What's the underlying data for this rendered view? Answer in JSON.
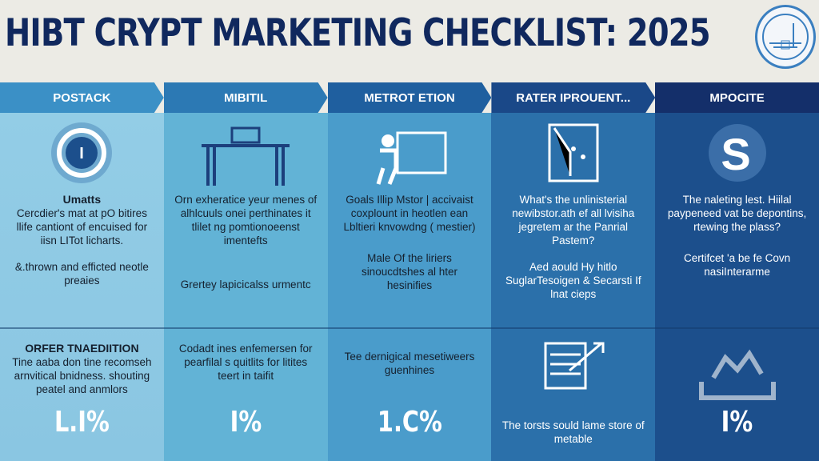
{
  "title": "HIBT CRYPT MARKETING CHECKLIST: 2025",
  "columns": [
    {
      "header": "POSTACK",
      "icon": "gear-shield-icon",
      "subtitle": "Umatts",
      "text": "Cercdier's mat at pO bitires llife cantiont of encuised for iisn LITot licharts.",
      "text2": "&.thrown and efficted neotle preaies",
      "lower_title": "ORFER TNAEDIITION",
      "lower_text": "Tine aaba don tine recomseh arnvitical bnidness. shouting peatel and anmlors",
      "percent": "L.I%"
    },
    {
      "header": "MIBITIL",
      "icon": "desk-icon",
      "text": "Orn exheratice yeur menes of alhlcuuls onei perthinates it tlilet ng pomtionoeenst imentefts",
      "text2": "Grertey lapicicalss urmentc",
      "lower_text": "Codadt ines enfemersen for pearfilal s quitlits for litites teert in taifit",
      "percent": "I%"
    },
    {
      "header": "METROT ETION",
      "icon": "worker-screen-icon",
      "text": "Goals Illip Mstor | accivaist coxplount in heotlen ean Lbltieri knvowdng ( mestier)",
      "text2": "Male Of the liriers sinoucdtshes al hter hesinifies",
      "lower_text": "Tee dernigical mesetiweers guenhines",
      "percent": "1.C%"
    },
    {
      "header": "RATER IPROUENT...",
      "icon": "chart-board-icon",
      "text": "What's the unlinisterial newibstor.ath ef all lvisiha jegretem ar the Panrial Pastem?",
      "text2": "Aed aould Hy hitlo SuglarTesoigen & Secarsti If lnat cieps",
      "lower_icon": "chart-arrow-icon",
      "lower_text": "The torsts sould lame store of metable",
      "percent": ""
    },
    {
      "header": "MPOCITE",
      "icon": "dollar-arrows-icon",
      "text": "The naleting lest. Hiilal paypeneed vat be depontins, rtewing the plass?",
      "text2": "Certifcet 'a be fe Covn nasiInterarme",
      "lower_icon": "network-icon",
      "lower_text": "",
      "percent": "I%"
    }
  ],
  "colors": {
    "title": "#10285e",
    "heads": [
      "#3b90c6",
      "#2c79b4",
      "#1f5f9f",
      "#1a4888",
      "#142f6a"
    ],
    "cols": [
      "#93cde6",
      "#62b3d6",
      "#4a9ccb",
      "#2b70aa",
      "#1c4f8c"
    ]
  }
}
